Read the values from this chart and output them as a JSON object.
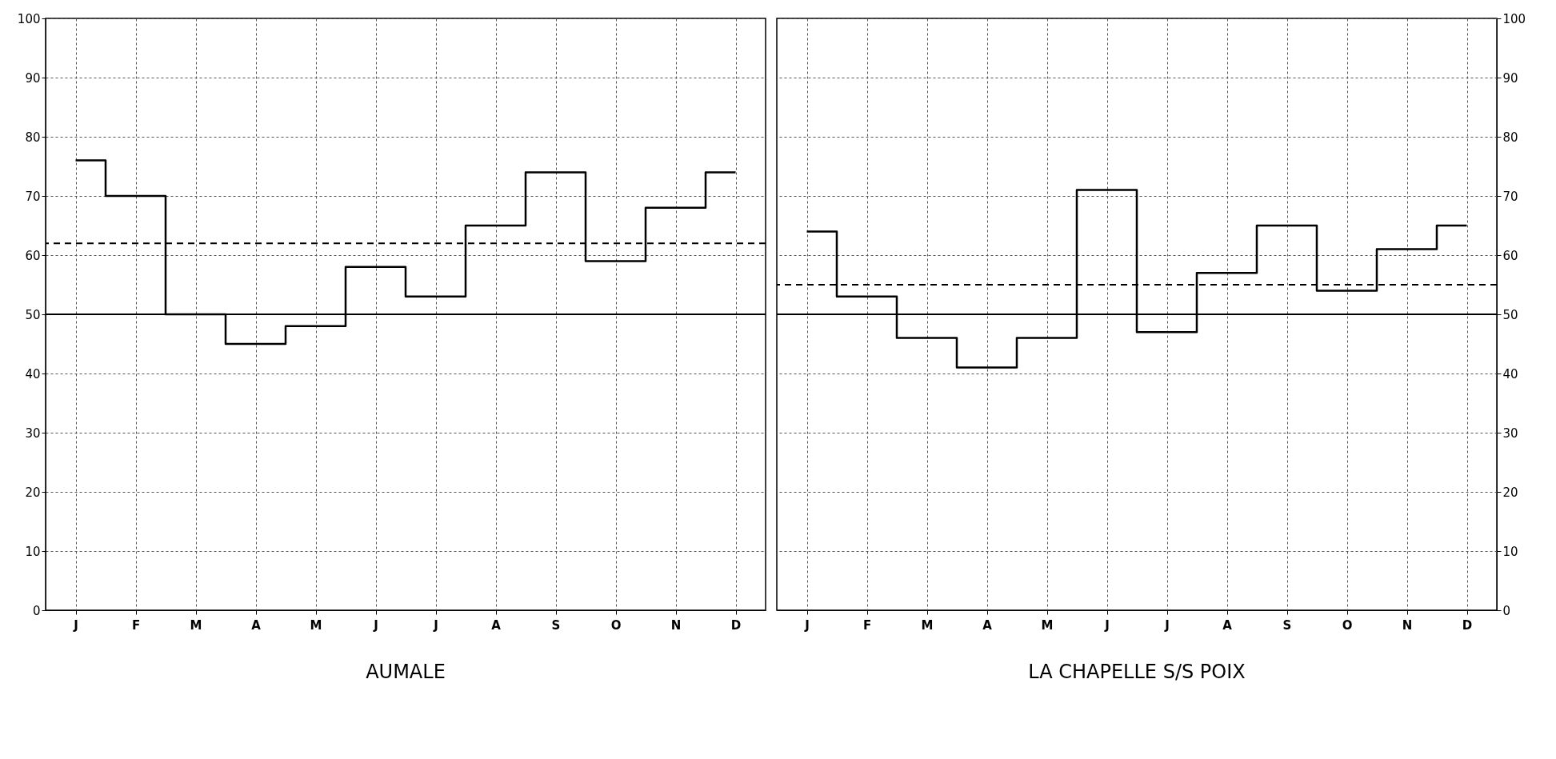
{
  "chart_data": [
    {
      "type": "step",
      "title": "AUMALE",
      "categories": [
        "J",
        "F",
        "M",
        "A",
        "M",
        "J",
        "J",
        "A",
        "S",
        "O",
        "N",
        "D"
      ],
      "series": [
        {
          "color": "#000000",
          "values": [
            76,
            70,
            50,
            45,
            48,
            58,
            53,
            65,
            74,
            59,
            68,
            74
          ]
        }
      ],
      "ylim": [
        0,
        100
      ],
      "yticks": [
        0,
        10,
        20,
        30,
        40,
        50,
        60,
        70,
        80,
        90,
        100
      ],
      "grid": true,
      "line_style": "solid",
      "ref_lines": [
        {
          "axis": "y",
          "value": 62,
          "line_style": "dashed",
          "color": "#000000"
        },
        {
          "axis": "y",
          "value": 50,
          "line_style": "solid",
          "color": "#000000"
        }
      ]
    },
    {
      "type": "step",
      "title": "LA CHAPELLE S/S POIX",
      "categories": [
        "J",
        "F",
        "M",
        "A",
        "M",
        "J",
        "J",
        "A",
        "S",
        "O",
        "N",
        "D"
      ],
      "series": [
        {
          "color": "#000000",
          "values": [
            64,
            53,
            46,
            41,
            46,
            71,
            47,
            57,
            65,
            54,
            61,
            65
          ],
          "axis": "y2"
        }
      ],
      "y2lim": [
        0,
        100
      ],
      "y2ticks": [
        0,
        10,
        20,
        30,
        40,
        50,
        60,
        70,
        80,
        90,
        100
      ],
      "grid": true,
      "line_style": "solid",
      "ref_lines": [
        {
          "axis": "y2",
          "value": 55,
          "line_style": "dashed",
          "color": "#000000"
        },
        {
          "axis": "y2",
          "value": 50,
          "line_style": "solid",
          "color": "#000000"
        }
      ]
    }
  ]
}
